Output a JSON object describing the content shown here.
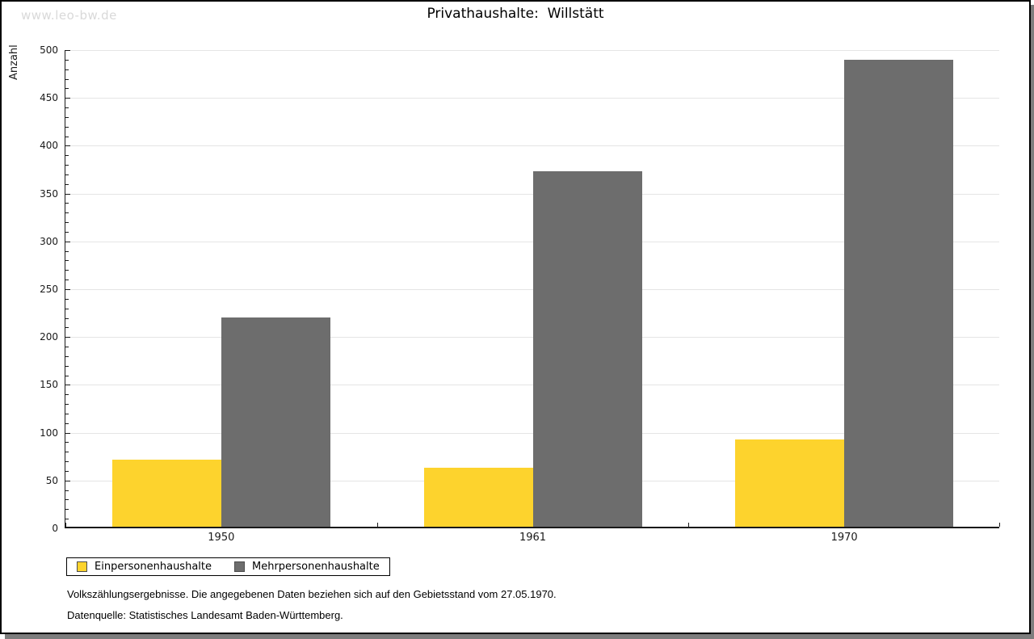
{
  "watermark": "www.leo-bw.de",
  "chart_data": {
    "type": "bar",
    "title": "Privathaushalte:  Willstätt",
    "ylabel": "Anzahl",
    "xlabel": "",
    "categories": [
      "1950",
      "1961",
      "1970"
    ],
    "series": [
      {
        "name": "Einpersonenhaushalte",
        "color": "#fdd32d",
        "values": [
          70,
          62,
          91
        ]
      },
      {
        "name": "Mehrpersonenhaushalte",
        "color": "#6d6d6d",
        "values": [
          219,
          372,
          488
        ]
      }
    ],
    "ylim": [
      0,
      500
    ],
    "ytick_step": 50,
    "yminor_tick_step": 10,
    "grid": true,
    "legend_position": "bottom-left"
  },
  "footnotes": {
    "line1": "Volkszählungsergebnisse. Die angegebenen Daten beziehen sich auf den Gebietsstand vom 27.05.1970.",
    "line2": "Datenquelle: Statistisches Landesamt Baden-Württemberg."
  }
}
